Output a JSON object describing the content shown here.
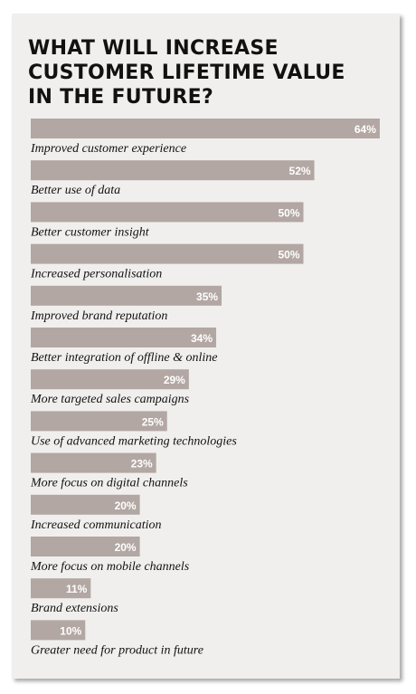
{
  "title_lines": [
    "WHAT WILL INCREASE",
    "CUSTOMER LIFETIME VALUE",
    "IN THE FUTURE?"
  ],
  "colors": {
    "bar": "#b2a7a3",
    "panel": "#f0efed",
    "value_text": "#ffffff",
    "label_text": "#111111"
  },
  "chart_data": {
    "type": "bar",
    "orientation": "horizontal",
    "title": "WHAT WILL INCREASE CUSTOMER LIFETIME VALUE IN THE FUTURE?",
    "xlim": [
      0,
      100
    ],
    "grid": false,
    "legend": "none",
    "categories": [
      "Improved customer experience",
      "Better use of data",
      "Better customer insight",
      "Increased personalisation",
      "Improved brand reputation",
      "Better integration of offline & online",
      "More targeted sales campaigns",
      "Use of advanced marketing technologies",
      "More focus on digital channels",
      "Increased communication",
      "More focus on mobile channels",
      "Brand extensions",
      "Greater need for product in future"
    ],
    "values": [
      64,
      52,
      50,
      50,
      35,
      34,
      29,
      25,
      23,
      20,
      20,
      11,
      10
    ],
    "value_labels": [
      "64%",
      "52%",
      "50%",
      "50%",
      "35%",
      "34%",
      "29%",
      "25%",
      "23%",
      "20%",
      "20%",
      "11%",
      "10%"
    ]
  }
}
